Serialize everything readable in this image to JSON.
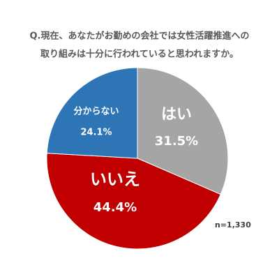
{
  "chart_data": {
    "type": "pie",
    "title": [
      "Q.現在、あなたがお勤めの会社では女性活躍推進への",
      "取り組みは十分に行われていると思われますか。"
    ],
    "categories": [
      "はい",
      "いいえ",
      "分からない"
    ],
    "values": [
      31.5,
      44.4,
      24.1
    ],
    "value_labels": [
      "31.5%",
      "44.4%",
      "24.1%"
    ],
    "colors": [
      "#a5a5a5",
      "#c00000",
      "#2e75b6"
    ],
    "note": "n=1,330"
  }
}
